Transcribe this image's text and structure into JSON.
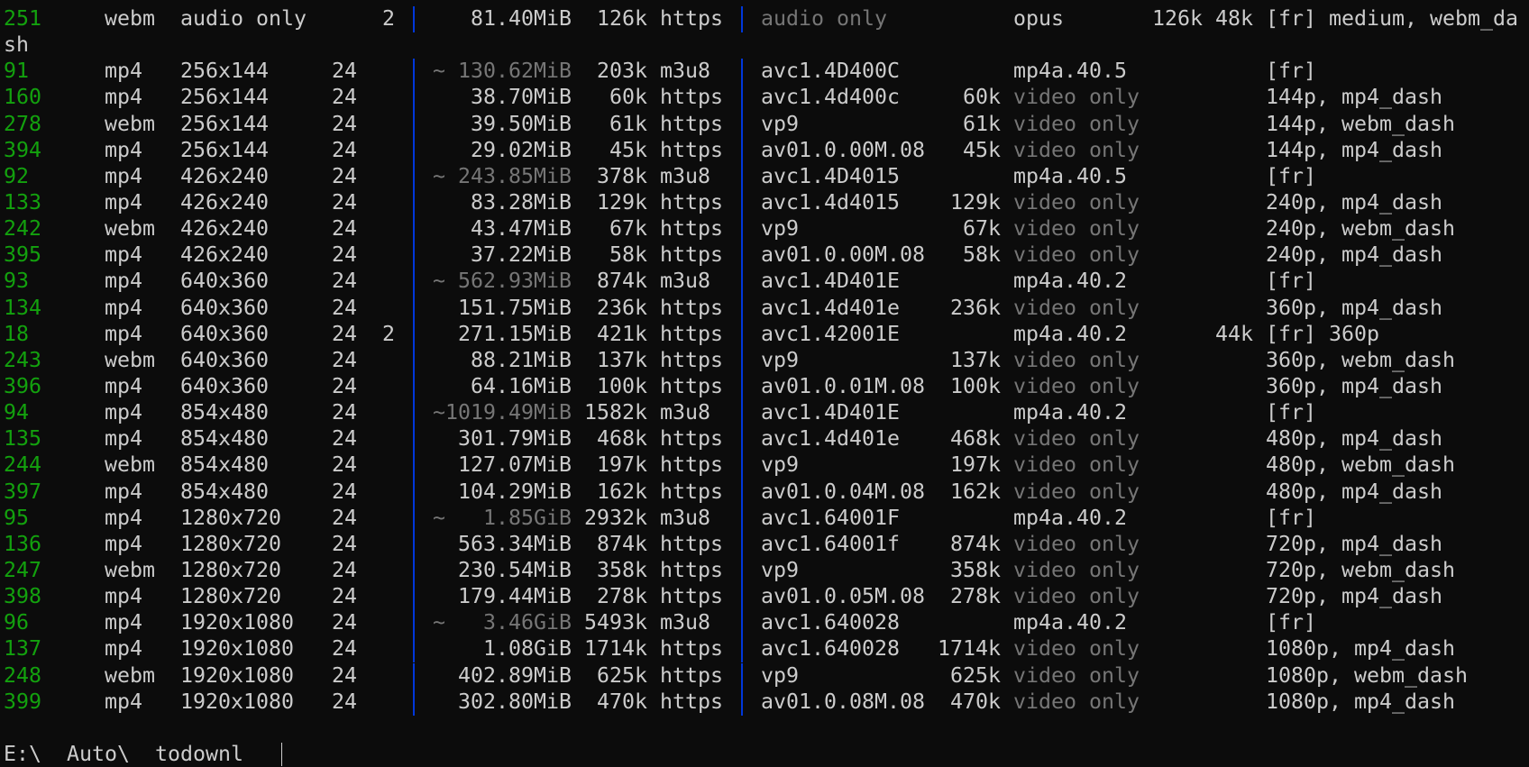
{
  "terminal": {
    "colors": {
      "background": "#0c0c0c",
      "text": "#cccccc",
      "id": "#13a10e",
      "dim": "#767676",
      "separator": "#0037da"
    },
    "rows": [
      {
        "id": "251",
        "ext": "webm",
        "res": "audio only",
        "fps": "",
        "ch": "2",
        "size": "81.40MiB",
        "size_dim": false,
        "tbr": "126k",
        "proto": "https",
        "vcodec": "audio only",
        "vcodec_dim": true,
        "vbr": "",
        "acodec": "opus",
        "acodec_dim": false,
        "abr": "126k",
        "asr": "48k",
        "info": "[fr] medium, webm_dash"
      },
      {
        "id": "91",
        "ext": "mp4",
        "res": "256x144",
        "fps": "24",
        "ch": "",
        "size": "~ 130.62MiB",
        "size_dim": true,
        "tbr": "203k",
        "proto": "m3u8",
        "vcodec": "avc1.4D400C",
        "vcodec_dim": false,
        "vbr": "",
        "acodec": "mp4a.40.5",
        "acodec_dim": false,
        "abr": "",
        "asr": "",
        "info": "[fr]"
      },
      {
        "id": "160",
        "ext": "mp4",
        "res": "256x144",
        "fps": "24",
        "ch": "",
        "size": "38.70MiB",
        "size_dim": false,
        "tbr": "60k",
        "proto": "https",
        "vcodec": "avc1.4d400c",
        "vcodec_dim": false,
        "vbr": "60k",
        "acodec": "video only",
        "acodec_dim": true,
        "abr": "",
        "asr": "",
        "info": "144p, mp4_dash"
      },
      {
        "id": "278",
        "ext": "webm",
        "res": "256x144",
        "fps": "24",
        "ch": "",
        "size": "39.50MiB",
        "size_dim": false,
        "tbr": "61k",
        "proto": "https",
        "vcodec": "vp9",
        "vcodec_dim": false,
        "vbr": "61k",
        "acodec": "video only",
        "acodec_dim": true,
        "abr": "",
        "asr": "",
        "info": "144p, webm_dash"
      },
      {
        "id": "394",
        "ext": "mp4",
        "res": "256x144",
        "fps": "24",
        "ch": "",
        "size": "29.02MiB",
        "size_dim": false,
        "tbr": "45k",
        "proto": "https",
        "vcodec": "av01.0.00M.08",
        "vcodec_dim": false,
        "vbr": "45k",
        "acodec": "video only",
        "acodec_dim": true,
        "abr": "",
        "asr": "",
        "info": "144p, mp4_dash"
      },
      {
        "id": "92",
        "ext": "mp4",
        "res": "426x240",
        "fps": "24",
        "ch": "",
        "size": "~ 243.85MiB",
        "size_dim": true,
        "tbr": "378k",
        "proto": "m3u8",
        "vcodec": "avc1.4D4015",
        "vcodec_dim": false,
        "vbr": "",
        "acodec": "mp4a.40.5",
        "acodec_dim": false,
        "abr": "",
        "asr": "",
        "info": "[fr]"
      },
      {
        "id": "133",
        "ext": "mp4",
        "res": "426x240",
        "fps": "24",
        "ch": "",
        "size": "83.28MiB",
        "size_dim": false,
        "tbr": "129k",
        "proto": "https",
        "vcodec": "avc1.4d4015",
        "vcodec_dim": false,
        "vbr": "129k",
        "acodec": "video only",
        "acodec_dim": true,
        "abr": "",
        "asr": "",
        "info": "240p, mp4_dash"
      },
      {
        "id": "242",
        "ext": "webm",
        "res": "426x240",
        "fps": "24",
        "ch": "",
        "size": "43.47MiB",
        "size_dim": false,
        "tbr": "67k",
        "proto": "https",
        "vcodec": "vp9",
        "vcodec_dim": false,
        "vbr": "67k",
        "acodec": "video only",
        "acodec_dim": true,
        "abr": "",
        "asr": "",
        "info": "240p, webm_dash"
      },
      {
        "id": "395",
        "ext": "mp4",
        "res": "426x240",
        "fps": "24",
        "ch": "",
        "size": "37.22MiB",
        "size_dim": false,
        "tbr": "58k",
        "proto": "https",
        "vcodec": "av01.0.00M.08",
        "vcodec_dim": false,
        "vbr": "58k",
        "acodec": "video only",
        "acodec_dim": true,
        "abr": "",
        "asr": "",
        "info": "240p, mp4_dash"
      },
      {
        "id": "93",
        "ext": "mp4",
        "res": "640x360",
        "fps": "24",
        "ch": "",
        "size": "~ 562.93MiB",
        "size_dim": true,
        "tbr": "874k",
        "proto": "m3u8",
        "vcodec": "avc1.4D401E",
        "vcodec_dim": false,
        "vbr": "",
        "acodec": "mp4a.40.2",
        "acodec_dim": false,
        "abr": "",
        "asr": "",
        "info": "[fr]"
      },
      {
        "id": "134",
        "ext": "mp4",
        "res": "640x360",
        "fps": "24",
        "ch": "",
        "size": "151.75MiB",
        "size_dim": false,
        "tbr": "236k",
        "proto": "https",
        "vcodec": "avc1.4d401e",
        "vcodec_dim": false,
        "vbr": "236k",
        "acodec": "video only",
        "acodec_dim": true,
        "abr": "",
        "asr": "",
        "info": "360p, mp4_dash"
      },
      {
        "id": "18",
        "ext": "mp4",
        "res": "640x360",
        "fps": "24",
        "ch": "2",
        "size": "271.15MiB",
        "size_dim": false,
        "tbr": "421k",
        "proto": "https",
        "vcodec": "avc1.42001E",
        "vcodec_dim": false,
        "vbr": "",
        "acodec": "mp4a.40.2",
        "acodec_dim": false,
        "abr": "",
        "asr": "44k",
        "info": "[fr] 360p"
      },
      {
        "id": "243",
        "ext": "webm",
        "res": "640x360",
        "fps": "24",
        "ch": "",
        "size": "88.21MiB",
        "size_dim": false,
        "tbr": "137k",
        "proto": "https",
        "vcodec": "vp9",
        "vcodec_dim": false,
        "vbr": "137k",
        "acodec": "video only",
        "acodec_dim": true,
        "abr": "",
        "asr": "",
        "info": "360p, webm_dash"
      },
      {
        "id": "396",
        "ext": "mp4",
        "res": "640x360",
        "fps": "24",
        "ch": "",
        "size": "64.16MiB",
        "size_dim": false,
        "tbr": "100k",
        "proto": "https",
        "vcodec": "av01.0.01M.08",
        "vcodec_dim": false,
        "vbr": "100k",
        "acodec": "video only",
        "acodec_dim": true,
        "abr": "",
        "asr": "",
        "info": "360p, mp4_dash"
      },
      {
        "id": "94",
        "ext": "mp4",
        "res": "854x480",
        "fps": "24",
        "ch": "",
        "size": "~1019.49MiB",
        "size_dim": true,
        "tbr": "1582k",
        "proto": "m3u8",
        "vcodec": "avc1.4D401E",
        "vcodec_dim": false,
        "vbr": "",
        "acodec": "mp4a.40.2",
        "acodec_dim": false,
        "abr": "",
        "asr": "",
        "info": "[fr]"
      },
      {
        "id": "135",
        "ext": "mp4",
        "res": "854x480",
        "fps": "24",
        "ch": "",
        "size": "301.79MiB",
        "size_dim": false,
        "tbr": "468k",
        "proto": "https",
        "vcodec": "avc1.4d401e",
        "vcodec_dim": false,
        "vbr": "468k",
        "acodec": "video only",
        "acodec_dim": true,
        "abr": "",
        "asr": "",
        "info": "480p, mp4_dash"
      },
      {
        "id": "244",
        "ext": "webm",
        "res": "854x480",
        "fps": "24",
        "ch": "",
        "size": "127.07MiB",
        "size_dim": false,
        "tbr": "197k",
        "proto": "https",
        "vcodec": "vp9",
        "vcodec_dim": false,
        "vbr": "197k",
        "acodec": "video only",
        "acodec_dim": true,
        "abr": "",
        "asr": "",
        "info": "480p, webm_dash"
      },
      {
        "id": "397",
        "ext": "mp4",
        "res": "854x480",
        "fps": "24",
        "ch": "",
        "size": "104.29MiB",
        "size_dim": false,
        "tbr": "162k",
        "proto": "https",
        "vcodec": "av01.0.04M.08",
        "vcodec_dim": false,
        "vbr": "162k",
        "acodec": "video only",
        "acodec_dim": true,
        "abr": "",
        "asr": "",
        "info": "480p, mp4_dash"
      },
      {
        "id": "95",
        "ext": "mp4",
        "res": "1280x720",
        "fps": "24",
        "ch": "",
        "size": "~   1.85GiB",
        "size_dim": true,
        "tbr": "2932k",
        "proto": "m3u8",
        "vcodec": "avc1.64001F",
        "vcodec_dim": false,
        "vbr": "",
        "acodec": "mp4a.40.2",
        "acodec_dim": false,
        "abr": "",
        "asr": "",
        "info": "[fr]"
      },
      {
        "id": "136",
        "ext": "mp4",
        "res": "1280x720",
        "fps": "24",
        "ch": "",
        "size": "563.34MiB",
        "size_dim": false,
        "tbr": "874k",
        "proto": "https",
        "vcodec": "avc1.64001f",
        "vcodec_dim": false,
        "vbr": "874k",
        "acodec": "video only",
        "acodec_dim": true,
        "abr": "",
        "asr": "",
        "info": "720p, mp4_dash"
      },
      {
        "id": "247",
        "ext": "webm",
        "res": "1280x720",
        "fps": "24",
        "ch": "",
        "size": "230.54MiB",
        "size_dim": false,
        "tbr": "358k",
        "proto": "https",
        "vcodec": "vp9",
        "vcodec_dim": false,
        "vbr": "358k",
        "acodec": "video only",
        "acodec_dim": true,
        "abr": "",
        "asr": "",
        "info": "720p, webm_dash"
      },
      {
        "id": "398",
        "ext": "mp4",
        "res": "1280x720",
        "fps": "24",
        "ch": "",
        "size": "179.44MiB",
        "size_dim": false,
        "tbr": "278k",
        "proto": "https",
        "vcodec": "av01.0.05M.08",
        "vcodec_dim": false,
        "vbr": "278k",
        "acodec": "video only",
        "acodec_dim": true,
        "abr": "",
        "asr": "",
        "info": "720p, mp4_dash"
      },
      {
        "id": "96",
        "ext": "mp4",
        "res": "1920x1080",
        "fps": "24",
        "ch": "",
        "size": "~   3.46GiB",
        "size_dim": true,
        "tbr": "5493k",
        "proto": "m3u8",
        "vcodec": "avc1.640028",
        "vcodec_dim": false,
        "vbr": "",
        "acodec": "mp4a.40.2",
        "acodec_dim": false,
        "abr": "",
        "asr": "",
        "info": "[fr]"
      },
      {
        "id": "137",
        "ext": "mp4",
        "res": "1920x1080",
        "fps": "24",
        "ch": "",
        "size": "1.08GiB",
        "size_dim": false,
        "tbr": "1714k",
        "proto": "https",
        "vcodec": "avc1.640028",
        "vcodec_dim": false,
        "vbr": "1714k",
        "acodec": "video only",
        "acodec_dim": true,
        "abr": "",
        "asr": "",
        "info": "1080p, mp4_dash"
      },
      {
        "id": "248",
        "ext": "webm",
        "res": "1920x1080",
        "fps": "24",
        "ch": "",
        "size": "402.89MiB",
        "size_dim": false,
        "tbr": "625k",
        "proto": "https",
        "vcodec": "vp9",
        "vcodec_dim": false,
        "vbr": "625k",
        "acodec": "video only",
        "acodec_dim": true,
        "abr": "",
        "asr": "",
        "info": "1080p, webm_dash"
      },
      {
        "id": "399",
        "ext": "mp4",
        "res": "1920x1080",
        "fps": "24",
        "ch": "",
        "size": "302.80MiB",
        "size_dim": false,
        "tbr": "470k",
        "proto": "https",
        "vcodec": "av01.0.08M.08",
        "vcodec_dim": false,
        "vbr": "470k",
        "acodec": "video only",
        "acodec_dim": true,
        "abr": "",
        "asr": "",
        "info": "1080p, mp4_dash"
      }
    ],
    "prompt": "E:\\  Auto\\  todownl"
  }
}
